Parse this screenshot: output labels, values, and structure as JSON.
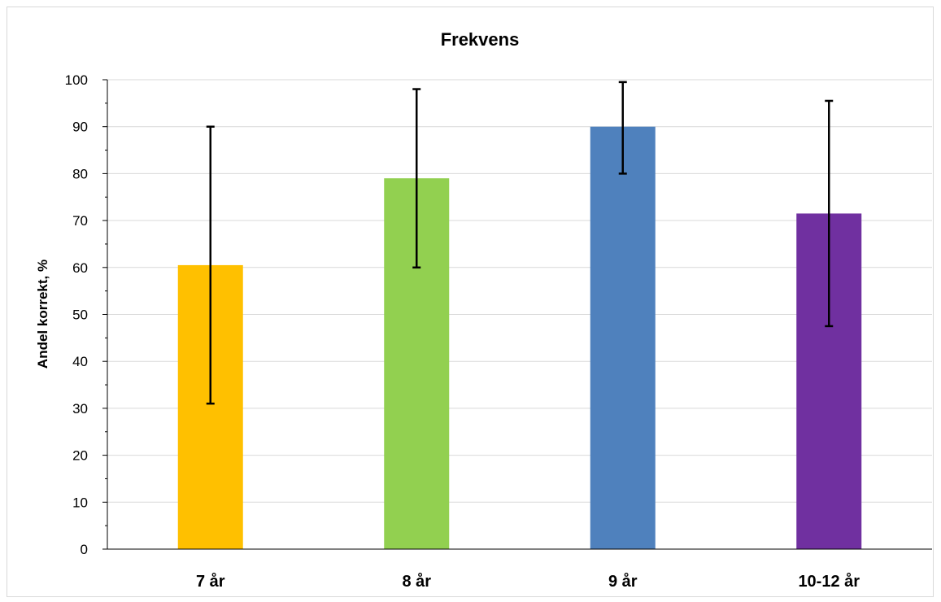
{
  "chart_data": {
    "type": "bar",
    "title": "Frekvens",
    "xlabel": "",
    "ylabel": "Andel korrekt, %",
    "ylim": [
      0,
      100
    ],
    "yticks": [
      "0",
      "10",
      "20",
      "30",
      "40",
      "50",
      "60",
      "70",
      "80",
      "90",
      "100"
    ],
    "categories": [
      "7 år",
      "8 år",
      "9 år",
      "10-12 år"
    ],
    "values": [
      60.5,
      79,
      90,
      71.5
    ],
    "error_bars": [
      {
        "low": 31,
        "high": 90
      },
      {
        "low": 60,
        "high": 98
      },
      {
        "low": 80,
        "high": 99.5
      },
      {
        "low": 47.5,
        "high": 95.5
      }
    ],
    "colors": [
      "#ffc000",
      "#92d050",
      "#4f81bd",
      "#7030a0"
    ],
    "grid": true,
    "legend": "none"
  }
}
